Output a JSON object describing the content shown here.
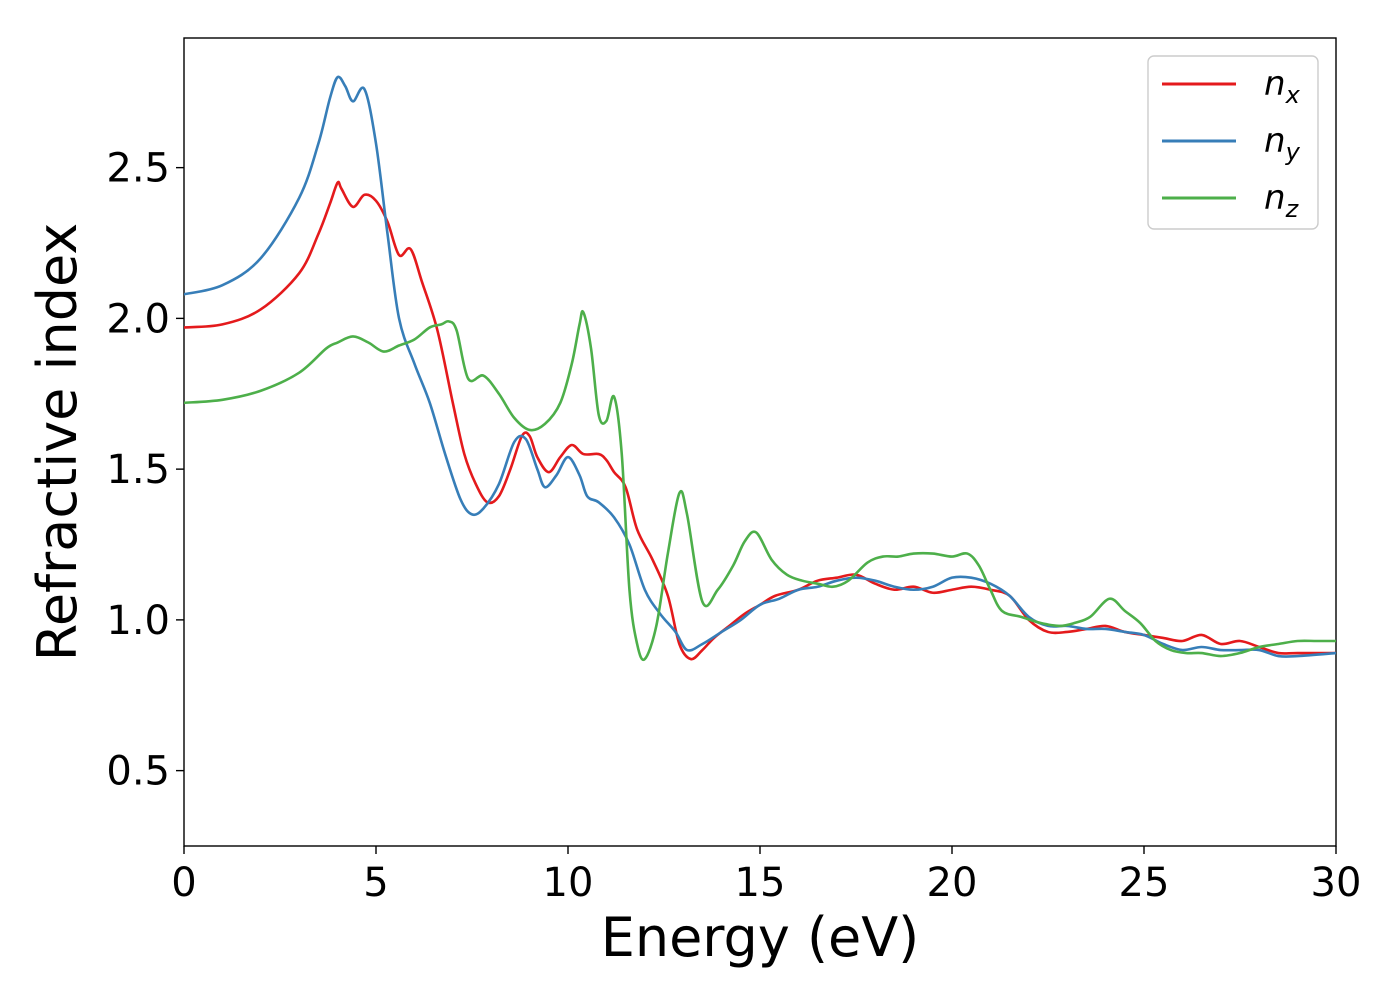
{
  "chart_data": {
    "type": "line",
    "title": "",
    "xlabel": "Energy (eV)",
    "ylabel": "Refractive index",
    "xlim": [
      0,
      30
    ],
    "ylim": [
      0.25,
      2.93
    ],
    "xticks": [
      0,
      5,
      10,
      15,
      20,
      25,
      30
    ],
    "xtick_labels": [
      "0",
      "5",
      "10",
      "15",
      "20",
      "25",
      "30"
    ],
    "yticks": [
      0.5,
      1.0,
      1.5,
      2.0,
      2.5
    ],
    "ytick_labels": [
      "0.5",
      "1.0",
      "1.5",
      "2.0",
      "2.5"
    ],
    "grid": false,
    "legend_position": "top-right",
    "series": [
      {
        "name": "n",
        "subscript": "x",
        "color": "#e41a1c",
        "points": [
          [
            0,
            1.97
          ],
          [
            1,
            1.98
          ],
          [
            2,
            2.03
          ],
          [
            3,
            2.15
          ],
          [
            3.5,
            2.28
          ],
          [
            3.8,
            2.38
          ],
          [
            4.0,
            2.45
          ],
          [
            4.1,
            2.43
          ],
          [
            4.4,
            2.37
          ],
          [
            4.7,
            2.41
          ],
          [
            5.0,
            2.39
          ],
          [
            5.3,
            2.32
          ],
          [
            5.6,
            2.21
          ],
          [
            5.9,
            2.23
          ],
          [
            6.2,
            2.12
          ],
          [
            6.6,
            1.96
          ],
          [
            7.0,
            1.72
          ],
          [
            7.3,
            1.55
          ],
          [
            7.6,
            1.45
          ],
          [
            7.9,
            1.39
          ],
          [
            8.2,
            1.41
          ],
          [
            8.5,
            1.5
          ],
          [
            8.8,
            1.61
          ],
          [
            9.0,
            1.61
          ],
          [
            9.2,
            1.54
          ],
          [
            9.5,
            1.49
          ],
          [
            9.8,
            1.54
          ],
          [
            10.1,
            1.58
          ],
          [
            10.4,
            1.55
          ],
          [
            10.8,
            1.55
          ],
          [
            11.0,
            1.53
          ],
          [
            11.2,
            1.49
          ],
          [
            11.5,
            1.44
          ],
          [
            11.8,
            1.3
          ],
          [
            12.2,
            1.2
          ],
          [
            12.6,
            1.08
          ],
          [
            12.9,
            0.92
          ],
          [
            13.2,
            0.87
          ],
          [
            13.5,
            0.9
          ],
          [
            13.8,
            0.94
          ],
          [
            14.2,
            0.98
          ],
          [
            14.6,
            1.02
          ],
          [
            15.0,
            1.05
          ],
          [
            15.4,
            1.08
          ],
          [
            16.0,
            1.1
          ],
          [
            16.5,
            1.13
          ],
          [
            17.0,
            1.14
          ],
          [
            17.5,
            1.15
          ],
          [
            18.0,
            1.12
          ],
          [
            18.5,
            1.1
          ],
          [
            19.0,
            1.11
          ],
          [
            19.5,
            1.09
          ],
          [
            20.0,
            1.1
          ],
          [
            20.5,
            1.11
          ],
          [
            21.0,
            1.1
          ],
          [
            21.5,
            1.08
          ],
          [
            22.0,
            1.0
          ],
          [
            22.5,
            0.96
          ],
          [
            23.0,
            0.96
          ],
          [
            23.5,
            0.97
          ],
          [
            24.0,
            0.98
          ],
          [
            24.5,
            0.96
          ],
          [
            25.0,
            0.95
          ],
          [
            25.5,
            0.94
          ],
          [
            26.0,
            0.93
          ],
          [
            26.5,
            0.95
          ],
          [
            27.0,
            0.92
          ],
          [
            27.5,
            0.93
          ],
          [
            28.0,
            0.91
          ],
          [
            28.5,
            0.89
          ],
          [
            29.0,
            0.89
          ],
          [
            30.0,
            0.89
          ]
        ]
      },
      {
        "name": "n",
        "subscript": "y",
        "color": "#377eb8",
        "points": [
          [
            0,
            2.08
          ],
          [
            1,
            2.11
          ],
          [
            2,
            2.2
          ],
          [
            3,
            2.4
          ],
          [
            3.5,
            2.58
          ],
          [
            3.8,
            2.73
          ],
          [
            4.0,
            2.8
          ],
          [
            4.2,
            2.77
          ],
          [
            4.4,
            2.72
          ],
          [
            4.7,
            2.76
          ],
          [
            5.0,
            2.58
          ],
          [
            5.3,
            2.28
          ],
          [
            5.6,
            2.0
          ],
          [
            6.0,
            1.85
          ],
          [
            6.4,
            1.72
          ],
          [
            6.8,
            1.55
          ],
          [
            7.2,
            1.4
          ],
          [
            7.5,
            1.35
          ],
          [
            7.8,
            1.37
          ],
          [
            8.2,
            1.45
          ],
          [
            8.6,
            1.59
          ],
          [
            8.9,
            1.6
          ],
          [
            9.2,
            1.5
          ],
          [
            9.4,
            1.44
          ],
          [
            9.7,
            1.48
          ],
          [
            10.0,
            1.54
          ],
          [
            10.3,
            1.48
          ],
          [
            10.5,
            1.41
          ],
          [
            10.8,
            1.39
          ],
          [
            11.2,
            1.34
          ],
          [
            11.6,
            1.25
          ],
          [
            12.0,
            1.1
          ],
          [
            12.4,
            1.02
          ],
          [
            12.8,
            0.96
          ],
          [
            13.1,
            0.9
          ],
          [
            13.5,
            0.92
          ],
          [
            14.0,
            0.96
          ],
          [
            14.5,
            1.0
          ],
          [
            15.0,
            1.05
          ],
          [
            15.5,
            1.07
          ],
          [
            16.0,
            1.1
          ],
          [
            16.5,
            1.11
          ],
          [
            17.0,
            1.13
          ],
          [
            17.5,
            1.14
          ],
          [
            18.0,
            1.13
          ],
          [
            18.5,
            1.11
          ],
          [
            19.0,
            1.1
          ],
          [
            19.5,
            1.11
          ],
          [
            20.0,
            1.14
          ],
          [
            20.5,
            1.14
          ],
          [
            21.0,
            1.12
          ],
          [
            21.5,
            1.08
          ],
          [
            22.0,
            1.01
          ],
          [
            22.5,
            0.98
          ],
          [
            23.0,
            0.98
          ],
          [
            23.5,
            0.97
          ],
          [
            24.0,
            0.97
          ],
          [
            24.5,
            0.96
          ],
          [
            25.0,
            0.95
          ],
          [
            25.5,
            0.92
          ],
          [
            26.0,
            0.9
          ],
          [
            26.5,
            0.91
          ],
          [
            27.0,
            0.9
          ],
          [
            27.5,
            0.9
          ],
          [
            28.0,
            0.9
          ],
          [
            28.5,
            0.88
          ],
          [
            29.0,
            0.88
          ],
          [
            30.0,
            0.89
          ]
        ]
      },
      {
        "name": "n",
        "subscript": "z",
        "color": "#4daf4a",
        "points": [
          [
            0,
            1.72
          ],
          [
            1,
            1.73
          ],
          [
            2,
            1.76
          ],
          [
            3,
            1.82
          ],
          [
            3.7,
            1.9
          ],
          [
            4.0,
            1.92
          ],
          [
            4.4,
            1.94
          ],
          [
            4.8,
            1.92
          ],
          [
            5.2,
            1.89
          ],
          [
            5.6,
            1.91
          ],
          [
            6.0,
            1.93
          ],
          [
            6.4,
            1.97
          ],
          [
            6.7,
            1.98
          ],
          [
            6.9,
            1.99
          ],
          [
            7.1,
            1.96
          ],
          [
            7.4,
            1.8
          ],
          [
            7.8,
            1.81
          ],
          [
            8.2,
            1.75
          ],
          [
            8.6,
            1.67
          ],
          [
            9.0,
            1.63
          ],
          [
            9.4,
            1.65
          ],
          [
            9.8,
            1.72
          ],
          [
            10.1,
            1.85
          ],
          [
            10.3,
            1.98
          ],
          [
            10.4,
            2.02
          ],
          [
            10.6,
            1.9
          ],
          [
            10.8,
            1.68
          ],
          [
            11.0,
            1.66
          ],
          [
            11.2,
            1.74
          ],
          [
            11.4,
            1.55
          ],
          [
            11.6,
            1.1
          ],
          [
            11.8,
            0.92
          ],
          [
            12.0,
            0.87
          ],
          [
            12.3,
            0.98
          ],
          [
            12.6,
            1.22
          ],
          [
            12.9,
            1.42
          ],
          [
            13.1,
            1.35
          ],
          [
            13.5,
            1.06
          ],
          [
            13.9,
            1.1
          ],
          [
            14.3,
            1.18
          ],
          [
            14.6,
            1.26
          ],
          [
            14.9,
            1.29
          ],
          [
            15.3,
            1.2
          ],
          [
            15.7,
            1.15
          ],
          [
            16.1,
            1.13
          ],
          [
            16.5,
            1.12
          ],
          [
            16.9,
            1.11
          ],
          [
            17.3,
            1.13
          ],
          [
            17.8,
            1.19
          ],
          [
            18.2,
            1.21
          ],
          [
            18.6,
            1.21
          ],
          [
            19.0,
            1.22
          ],
          [
            19.5,
            1.22
          ],
          [
            20.0,
            1.21
          ],
          [
            20.4,
            1.22
          ],
          [
            20.7,
            1.18
          ],
          [
            21.0,
            1.1
          ],
          [
            21.3,
            1.03
          ],
          [
            21.8,
            1.01
          ],
          [
            22.3,
            0.99
          ],
          [
            22.8,
            0.98
          ],
          [
            23.2,
            0.99
          ],
          [
            23.6,
            1.01
          ],
          [
            24.1,
            1.07
          ],
          [
            24.5,
            1.03
          ],
          [
            24.9,
            0.99
          ],
          [
            25.3,
            0.93
          ],
          [
            25.7,
            0.9
          ],
          [
            26.1,
            0.89
          ],
          [
            26.5,
            0.89
          ],
          [
            27.0,
            0.88
          ],
          [
            27.5,
            0.89
          ],
          [
            28.0,
            0.91
          ],
          [
            28.5,
            0.92
          ],
          [
            29.0,
            0.93
          ],
          [
            29.5,
            0.93
          ],
          [
            30.0,
            0.93
          ]
        ]
      }
    ]
  }
}
